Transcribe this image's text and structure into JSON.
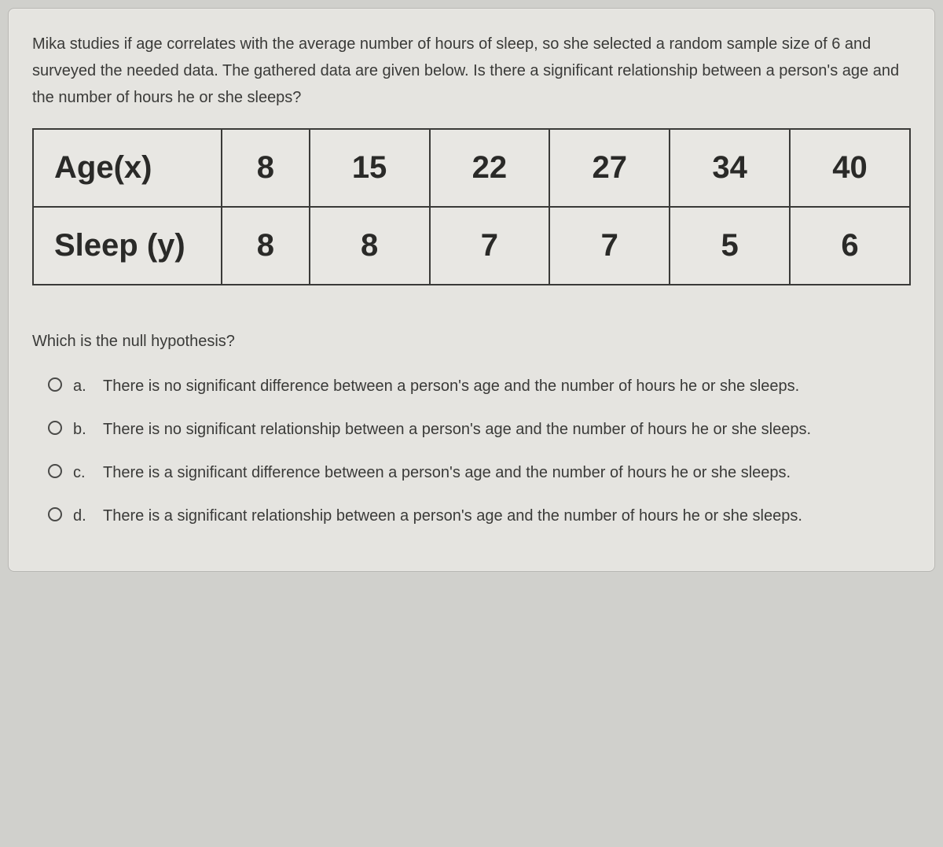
{
  "question": {
    "stem": "Mika studies if age correlates with the average number of hours of sleep, so she selected a random sample size of 6 and surveyed the needed data. The gathered data are given below. Is there a significant relationship between a person's age and the number of hours he or she sleeps?",
    "sub_question": "Which is the null hypothesis?"
  },
  "table": {
    "row1_label": "Age(x)",
    "row2_label": "Sleep (y)",
    "age": [
      "8",
      "15",
      "22",
      "27",
      "34",
      "40"
    ],
    "sleep": [
      "8",
      "8",
      "7",
      "7",
      "5",
      "6"
    ],
    "border_color": "#3a3a38",
    "cell_background": "#e8e7e3",
    "label_fontsize": 40,
    "value_fontsize": 40
  },
  "options": [
    {
      "letter": "a.",
      "text": "There is no significant difference between a person's age and the number of hours he or she sleeps."
    },
    {
      "letter": "b.",
      "text": "There is no significant relationship between a person's age and the number of hours he or she sleeps."
    },
    {
      "letter": "c.",
      "text": "There is a significant difference between a person's age and the number of hours he or she sleeps."
    },
    {
      "letter": "d.",
      "text": "There is a significant relationship between a person's age and the number of hours he or she sleeps."
    }
  ],
  "colors": {
    "page_background": "#d0d0cc",
    "card_background": "#e5e4e0",
    "card_border": "#b8b7b3",
    "text": "#3a3a38",
    "radio_border": "#4a4a48"
  }
}
